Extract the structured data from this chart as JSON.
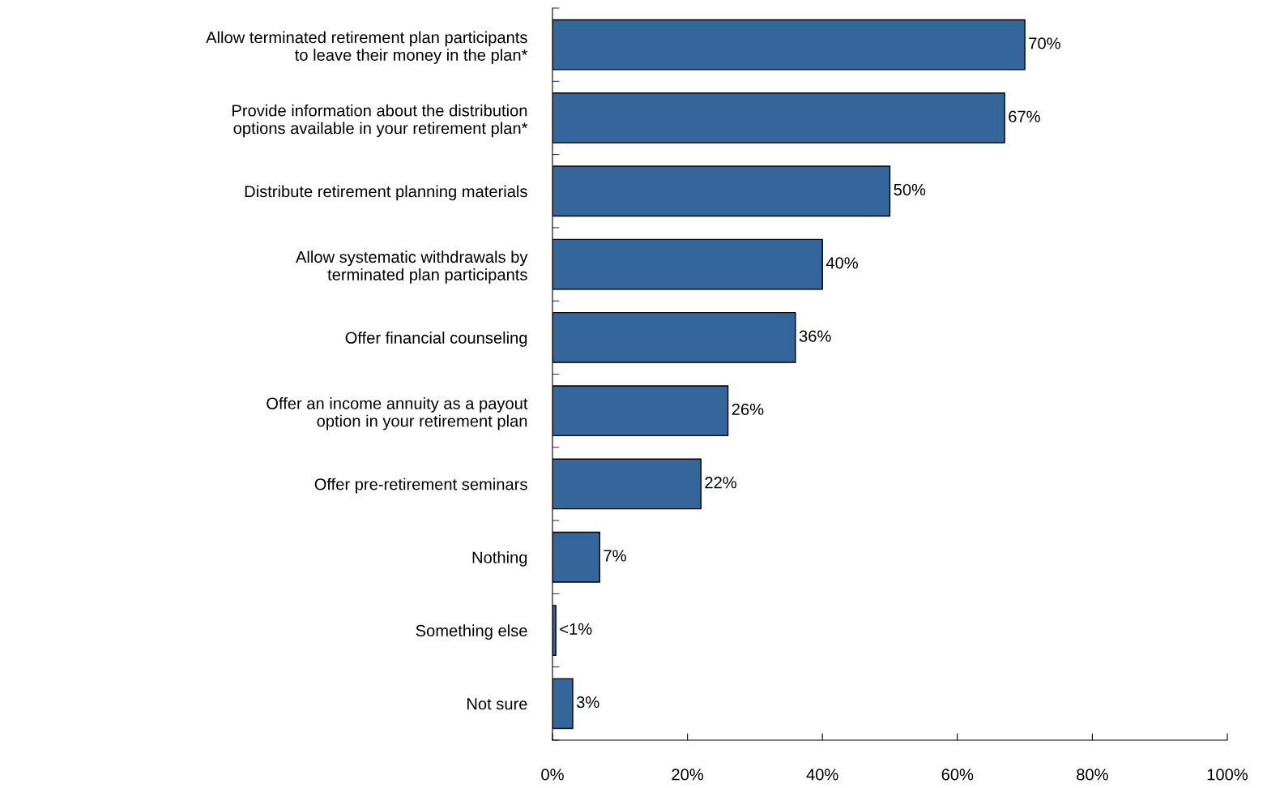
{
  "chart_data": {
    "type": "bar",
    "orientation": "horizontal",
    "categories": [
      "Allow terminated retirement plan participants\nto leave their money in the plan*",
      "Provide information about the distribution\noptions available in your retirement plan*",
      "Distribute retirement planning materials",
      "Allow systematic withdrawals by\nterminated plan participants",
      "Offer financial counseling",
      "Offer an income annuity as a payout\noption in your retirement plan",
      "Offer pre-retirement seminars",
      "Nothing",
      "Something else",
      "Not sure"
    ],
    "values": [
      70,
      67,
      50,
      40,
      36,
      26,
      22,
      7,
      0.5,
      3
    ],
    "value_labels": [
      "70%",
      "67%",
      "50%",
      "40%",
      "36%",
      "26%",
      "22%",
      "7%",
      "<1%",
      "3%"
    ],
    "color": "#34659b",
    "xlim": [
      0,
      100
    ],
    "xticks": [
      {
        "value": 0,
        "label": "0%"
      },
      {
        "value": 20,
        "label": "20%"
      },
      {
        "value": 40,
        "label": "40%"
      },
      {
        "value": 60,
        "label": "60%"
      },
      {
        "value": 80,
        "label": "80%"
      },
      {
        "value": 100,
        "label": "100%"
      }
    ],
    "grid": false,
    "legend": false
  }
}
